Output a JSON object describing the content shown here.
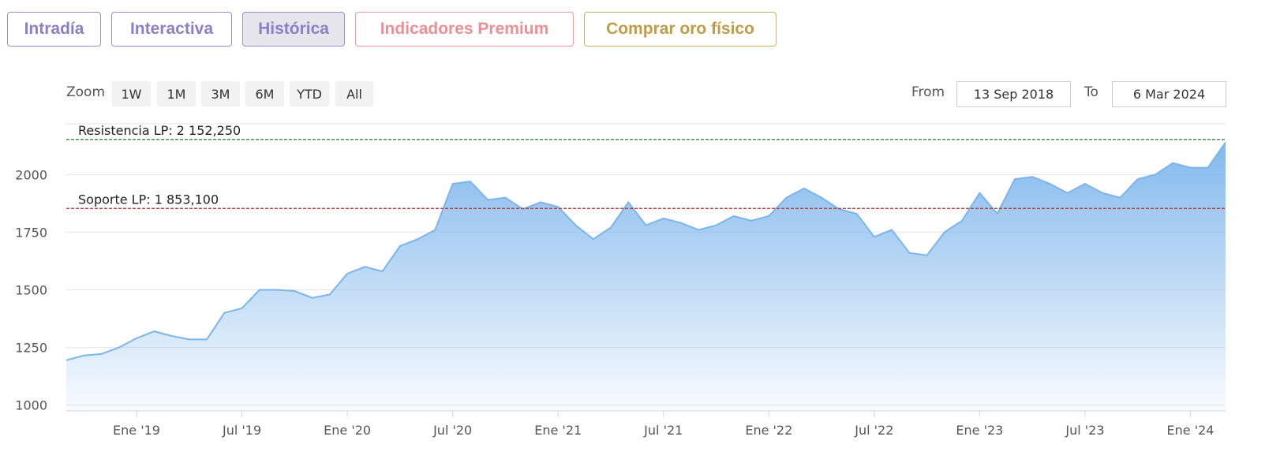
{
  "tabs": [
    "Intradía",
    "Interactiva",
    "Histórica",
    "Indicadores Premium",
    "Comprar oro físico"
  ],
  "zoom": {
    "label": "Zoom",
    "buttons": [
      "1W",
      "1M",
      "3M",
      "6M",
      "YTD",
      "All"
    ]
  },
  "range": {
    "from_label": "From",
    "from": "13 Sep 2018",
    "to_label": "To",
    "to": "6 Mar 2024"
  },
  "chart_data": {
    "type": "area",
    "x": [
      "2018-09",
      "2018-10",
      "2018-11",
      "2018-12",
      "2019-01",
      "2019-02",
      "2019-03",
      "2019-04",
      "2019-05",
      "2019-06",
      "2019-07",
      "2019-08",
      "2019-09",
      "2019-10",
      "2019-11",
      "2019-12",
      "2020-01",
      "2020-02",
      "2020-03",
      "2020-04",
      "2020-05",
      "2020-06",
      "2020-07",
      "2020-08",
      "2020-09",
      "2020-10",
      "2020-11",
      "2020-12",
      "2021-01",
      "2021-02",
      "2021-03",
      "2021-04",
      "2021-05",
      "2021-06",
      "2021-07",
      "2021-08",
      "2021-09",
      "2021-10",
      "2021-11",
      "2021-12",
      "2022-01",
      "2022-02",
      "2022-03",
      "2022-04",
      "2022-05",
      "2022-06",
      "2022-07",
      "2022-08",
      "2022-09",
      "2022-10",
      "2022-11",
      "2022-12",
      "2023-01",
      "2023-02",
      "2023-03",
      "2023-04",
      "2023-05",
      "2023-06",
      "2023-07",
      "2023-08",
      "2023-09",
      "2023-10",
      "2023-11",
      "2023-12",
      "2024-01",
      "2024-02",
      "2024-03"
    ],
    "series": [
      {
        "color": "#7cb5ec",
        "values": [
          1195,
          1215,
          1222,
          1250,
          1290,
          1320,
          1300,
          1285,
          1285,
          1400,
          1420,
          1500,
          1500,
          1495,
          1465,
          1480,
          1570,
          1600,
          1580,
          1690,
          1720,
          1760,
          1960,
          1970,
          1890,
          1900,
          1850,
          1880,
          1860,
          1780,
          1720,
          1770,
          1880,
          1780,
          1810,
          1790,
          1760,
          1780,
          1820,
          1800,
          1820,
          1900,
          1940,
          1900,
          1850,
          1830,
          1730,
          1760,
          1660,
          1650,
          1750,
          1800,
          1920,
          1830,
          1980,
          1990,
          1960,
          1920,
          1960,
          1920,
          1900,
          1980,
          2000,
          2050,
          2030,
          2030,
          2140
        ]
      }
    ],
    "xlim": [
      "2018-09",
      "2024-03"
    ],
    "xticks": [
      {
        "value": "2019-01",
        "label": "Ene '19"
      },
      {
        "value": "2019-07",
        "label": "Jul '19"
      },
      {
        "value": "2020-01",
        "label": "Ene '20"
      },
      {
        "value": "2020-07",
        "label": "Jul '20"
      },
      {
        "value": "2021-01",
        "label": "Ene '21"
      },
      {
        "value": "2021-07",
        "label": "Jul '21"
      },
      {
        "value": "2022-01",
        "label": "Ene '22"
      },
      {
        "value": "2022-07",
        "label": "Jul '22"
      },
      {
        "value": "2023-01",
        "label": "Ene '23"
      },
      {
        "value": "2023-07",
        "label": "Jul '23"
      },
      {
        "value": "2024-01",
        "label": "Ene '24"
      }
    ],
    "ylim": [
      975,
      2220
    ],
    "yticks": [
      1000,
      1250,
      1500,
      1750,
      2000
    ],
    "grid": true,
    "plot_lines": [
      {
        "value": 2152.25,
        "label": "Resistencia LP: 2 152,250",
        "color": "#2e8b2e"
      },
      {
        "value": 1853.1,
        "label": "Soporte LP: 1 853,100",
        "color": "#c0282d"
      }
    ]
  }
}
